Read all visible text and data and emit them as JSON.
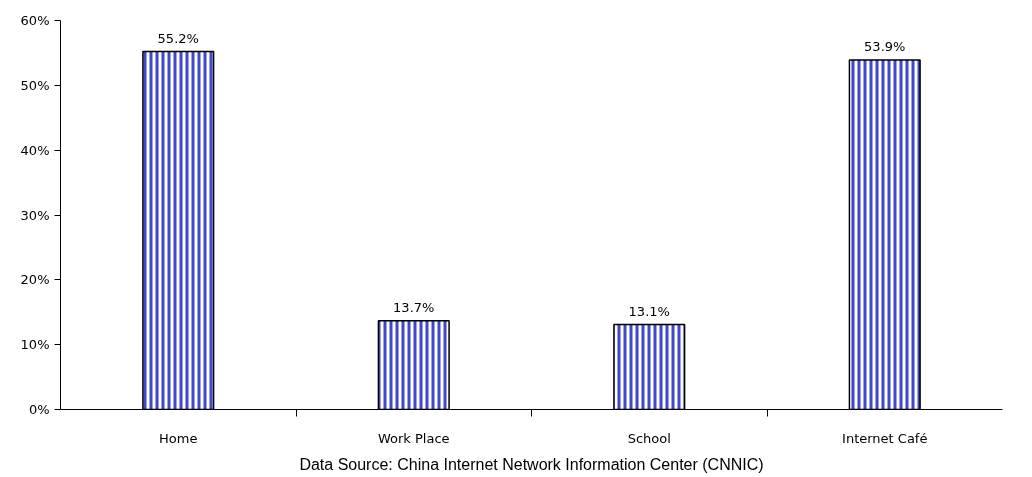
{
  "chart_data": {
    "type": "bar",
    "categories": [
      "Home",
      "Work Place",
      "School",
      "Internet Café"
    ],
    "values": [
      55.2,
      13.7,
      13.1,
      53.9
    ],
    "value_labels": [
      "55.2%",
      "13.7%",
      "13.1%",
      "53.9%"
    ],
    "color": "#3f48cc",
    "ylim": [
      0,
      60
    ],
    "yticks": [
      {
        "value": 0,
        "label": "0%"
      },
      {
        "value": 10,
        "label": "10%"
      },
      {
        "value": 20,
        "label": "20%"
      },
      {
        "value": 30,
        "label": "30%"
      },
      {
        "value": 40,
        "label": "40%"
      },
      {
        "value": 50,
        "label": "50%"
      },
      {
        "value": 60,
        "label": "60%"
      }
    ],
    "grid": false,
    "annotations": [
      "Data Source: China Internet Network Information Center (CNNIC)"
    ]
  }
}
